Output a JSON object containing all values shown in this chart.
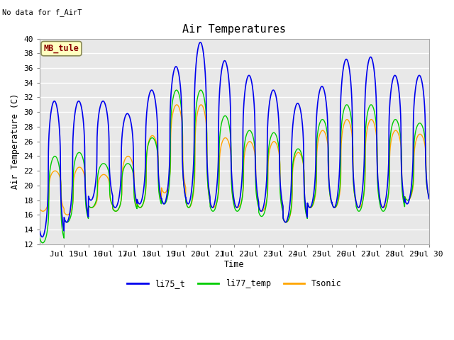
{
  "title": "Air Temperatures",
  "ylabel": "Air Temperature (C)",
  "xlabel": "Time",
  "note": "No data for f_AirT",
  "ylim": [
    12,
    40
  ],
  "yticks": [
    12,
    14,
    16,
    18,
    20,
    22,
    24,
    26,
    28,
    30,
    32,
    34,
    36,
    38,
    40
  ],
  "xtick_labels": [
    "Jul 15",
    "Jul 16",
    "Jul 17",
    "Jul 18",
    "Jul 19",
    "Jul 20",
    "Jul 21",
    "Jul 22",
    "Jul 23",
    "Jul 24",
    "Jul 25",
    "Jul 26",
    "Jul 27",
    "Jul 28",
    "Jul 29",
    "Jul 30"
  ],
  "color_blue": "#0000EE",
  "color_green": "#00CC00",
  "color_orange": "#FFA500",
  "bg_color": "#E8E8E8",
  "grid_color": "#FFFFFF",
  "legend_label1": "li75_t",
  "legend_label2": "li77_temp",
  "legend_label3": "Tsonic",
  "annotation_text": "MB_tule",
  "annotation_color": "#8B0000",
  "annotation_bg": "#FFFFC0",
  "blue_peaks": [
    31.5,
    31.5,
    31.5,
    29.8,
    33.0,
    36.2,
    39.5,
    37.0,
    35.0,
    33.0,
    31.2,
    33.5,
    37.2,
    37.5,
    35.0,
    35.0
  ],
  "green_peaks": [
    24.0,
    24.5,
    23.0,
    23.0,
    26.5,
    33.0,
    33.0,
    29.5,
    27.5,
    27.2,
    25.0,
    29.0,
    31.0,
    31.0,
    29.0,
    28.5
  ],
  "orange_peaks": [
    22.0,
    22.5,
    21.5,
    24.0,
    26.8,
    31.0,
    31.0,
    26.5,
    26.0,
    26.0,
    24.5,
    27.5,
    29.0,
    29.0,
    27.5,
    27.0
  ],
  "blue_troughs": [
    13.0,
    15.0,
    18.0,
    17.0,
    17.5,
    17.5,
    17.5,
    17.0,
    17.0,
    16.5,
    15.0,
    17.0,
    17.0,
    17.0,
    17.0,
    17.5
  ],
  "green_troughs": [
    12.2,
    15.0,
    17.0,
    16.5,
    17.0,
    17.5,
    17.0,
    16.5,
    16.5,
    15.8,
    15.0,
    17.0,
    17.0,
    16.5,
    16.5,
    18.0
  ],
  "orange_troughs": [
    16.5,
    16.0,
    17.0,
    16.5,
    17.0,
    19.0,
    17.0,
    17.0,
    17.0,
    16.5,
    15.0,
    17.0,
    17.0,
    17.0,
    17.0,
    18.0
  ]
}
